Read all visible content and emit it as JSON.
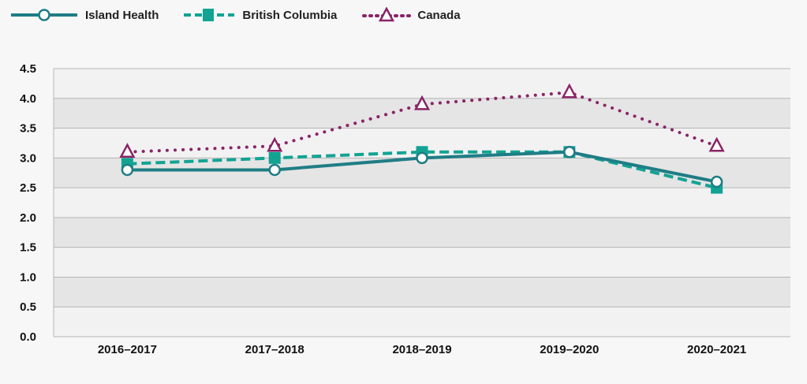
{
  "chart_data": {
    "type": "line",
    "title": "",
    "xlabel": "",
    "ylabel": "",
    "categories": [
      "2016–2017",
      "2017–2018",
      "2018–2019",
      "2019–2020",
      "2020–2021"
    ],
    "ylim": [
      0,
      4.5
    ],
    "yticks": [
      "0.0",
      "0.5",
      "1.0",
      "1.5",
      "2.0",
      "2.5",
      "3.0",
      "3.5",
      "4.0",
      "4.5"
    ],
    "ytick_values": [
      0,
      0.5,
      1.0,
      1.5,
      2.0,
      2.5,
      3.0,
      3.5,
      4.0,
      4.5
    ],
    "grid": true,
    "legend_position": "top-left",
    "series": [
      {
        "name": "Island Health",
        "values": [
          2.8,
          2.8,
          3.0,
          3.1,
          2.6
        ],
        "color": "#1f7d85",
        "line": "solid",
        "marker": "circle-open"
      },
      {
        "name": "British Columbia",
        "values": [
          2.9,
          3.0,
          3.1,
          3.1,
          2.5
        ],
        "color": "#12a393",
        "line": "dashed",
        "marker": "square-filled"
      },
      {
        "name": "Canada",
        "values": [
          3.1,
          3.2,
          3.9,
          4.1,
          3.2
        ],
        "color": "#8a2467",
        "line": "dotted",
        "marker": "triangle-open"
      }
    ]
  }
}
